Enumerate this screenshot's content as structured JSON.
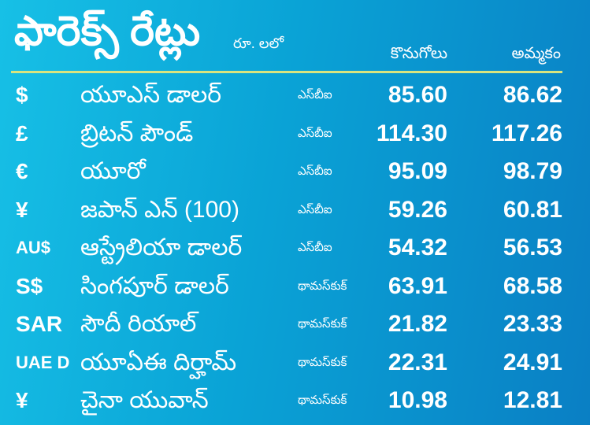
{
  "title": "ఫారెక్స్ రేట్లు",
  "unit": "రూ. లలో",
  "headers": {
    "buy": "కొనుగోలు",
    "sell": "అమ్మకం"
  },
  "colors": {
    "background_start": "#17c0e6",
    "background_end": "#0a7fc4",
    "rule": "#d9e47f",
    "text": "#ffffff"
  },
  "rows": [
    {
      "symbol": "$",
      "name": "యూఎస్ డాలర్",
      "bank": "ఎస్‌బీఐ",
      "buy": "85.60",
      "sell": "86.62"
    },
    {
      "symbol": "£",
      "name": "బ్రిటన్ పౌండ్",
      "bank": "ఎస్‌బీఐ",
      "buy": "114.30",
      "sell": "117.26"
    },
    {
      "symbol": "€",
      "name": "యూరో",
      "bank": "ఎస్‌బీఐ",
      "buy": "95.09",
      "sell": "98.79"
    },
    {
      "symbol": "¥",
      "name": "జపాన్ ఎన్ (100)",
      "bank": "ఎస్‌బీఐ",
      "buy": "59.26",
      "sell": "60.81"
    },
    {
      "symbol": "AU$",
      "name": "ఆస్ట్రేలియా డాలర్",
      "bank": "ఎస్‌బీఐ",
      "buy": "54.32",
      "sell": "56.53"
    },
    {
      "symbol": "S$",
      "name": "సింగపూర్ డాలర్",
      "bank": "థామస్‌కుక్",
      "buy": "63.91",
      "sell": "68.58"
    },
    {
      "symbol": "SAR",
      "name": "సౌదీ రియాల్",
      "bank": "థామస్‌కుక్",
      "buy": "21.82",
      "sell": "23.33"
    },
    {
      "symbol": "UAE D",
      "name": "యూఏఈ దిర్హామ్",
      "bank": "థామస్‌కుక్",
      "buy": "22.31",
      "sell": "24.91"
    },
    {
      "symbol": "¥",
      "name": "చైనా యువాన్",
      "bank": "థామస్‌కుక్",
      "buy": "10.98",
      "sell": "12.81"
    }
  ]
}
